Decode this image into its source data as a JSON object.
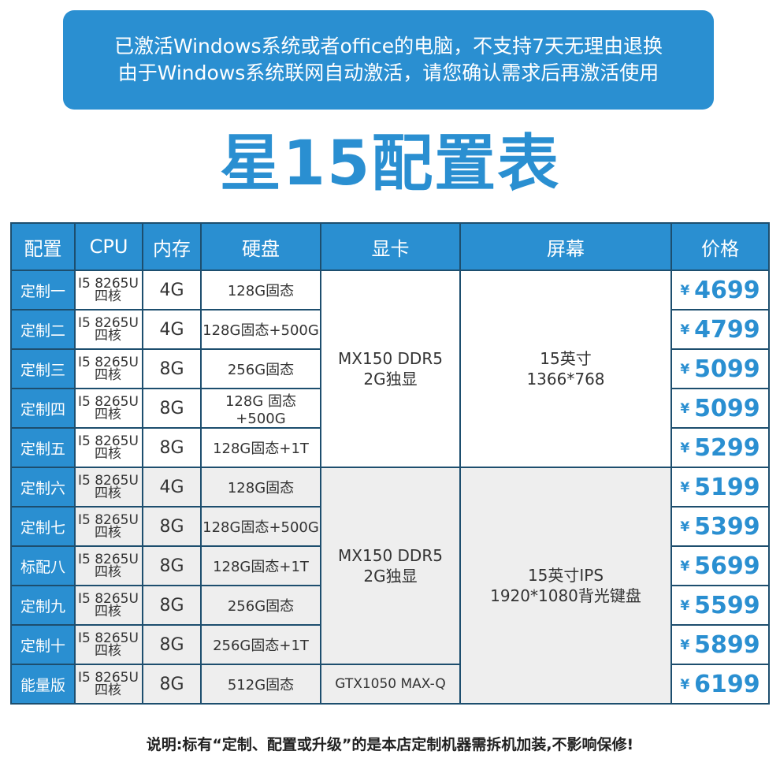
{
  "banner": {
    "line1": "已激活Windows系统或者office的电脑，不支持7天无理由退换",
    "line2": "由于Windows系统联网自动激活，请您确认需求后再激活使用"
  },
  "title": "星15配置表",
  "table": {
    "headers": [
      "配置",
      "CPU",
      "内存",
      "硬盘",
      "显卡",
      "屏幕",
      "价格"
    ],
    "cpu_line1": "I5 8265U",
    "cpu_line2": "四核",
    "currency": "¥",
    "rows": [
      {
        "config": "定制一",
        "memory": "4G",
        "disk": "128G固态",
        "price": "4699"
      },
      {
        "config": "定制二",
        "memory": "4G",
        "disk": "128G固态+500G",
        "price": "4799"
      },
      {
        "config": "定制三",
        "memory": "8G",
        "disk": "256G固态",
        "price": "5099"
      },
      {
        "config": "定制四",
        "memory": "8G",
        "disk": "128G 固态+500G",
        "price": "5099"
      },
      {
        "config": "定制五",
        "memory": "8G",
        "disk": "128G固态+1T",
        "price": "5299"
      },
      {
        "config": "定制六",
        "memory": "4G",
        "disk": "128G固态",
        "price": "5199"
      },
      {
        "config": "定制七",
        "memory": "8G",
        "disk": "128G固态+500G",
        "price": "5399"
      },
      {
        "config": "标配八",
        "memory": "8G",
        "disk": "128G固态+1T",
        "price": "5699"
      },
      {
        "config": "定制九",
        "memory": "8G",
        "disk": "256G固态",
        "price": "5599"
      },
      {
        "config": "定制十",
        "memory": "8G",
        "disk": "256G固态+1T",
        "price": "5899"
      },
      {
        "config": "能量版",
        "memory": "8G",
        "disk": "512G固态",
        "price": "6199"
      }
    ],
    "gpu_group1": {
      "line1": "MX150 DDR5",
      "line2": "2G独显"
    },
    "gpu_group2": {
      "line1": "MX150 DDR5",
      "line2": "2G独显"
    },
    "gpu_last": "GTX1050 MAX-Q",
    "screen_group1": {
      "line1": "15英寸",
      "line2": "1366*768"
    },
    "screen_group2": {
      "line1": "15英寸IPS",
      "line2": "1920*1080背光键盘"
    }
  },
  "note": "说明:标有“定制、配置或升级”的是本店定制机器需拆机加装,不影响保修!",
  "colors": {
    "accent": "#2a8fd1",
    "border": "#1d4e6e",
    "alt_row": "#eeeeee"
  }
}
